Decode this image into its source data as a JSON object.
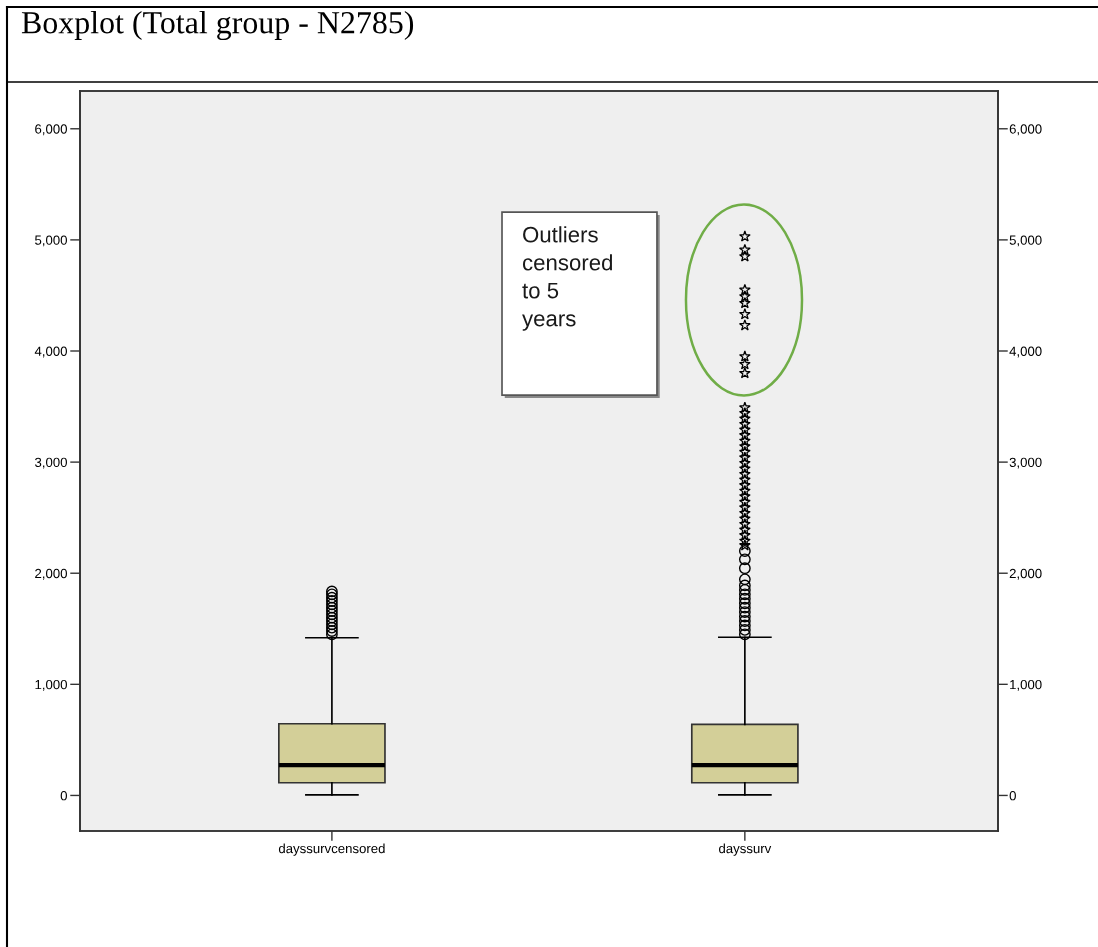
{
  "chart_data": {
    "type": "box",
    "title": "Boxplot (Total group - N2785)",
    "categories": [
      "dayssurvcensored",
      "dayssurv"
    ],
    "series": [
      {
        "type": "box",
        "color": "#d3cf98",
        "marker": "circle",
        "boxes": [
          {
            "low": 5,
            "q1": 114,
            "median": 273,
            "q3": 645,
            "high": 1419,
            "outliers": [
              1450,
              1480,
              1510,
              1540,
              1570,
              1600,
              1630,
              1660,
              1690,
              1720,
              1750,
              1780,
              1810,
              1836
            ]
          },
          {
            "low": 5,
            "q1": 114,
            "median": 273,
            "q3": 639,
            "high": 1424,
            "outliers": [
              1450,
              1490,
              1530,
              1570,
              1610,
              1650,
              1690,
              1730,
              1770,
              1810,
              1850,
              1890,
              1945,
              2045,
              2125,
              2200
            ]
          }
        ]
      },
      {
        "type": "scatter",
        "marker": "star",
        "color": "#000000",
        "x": [
          "dayssurv",
          "dayssurv",
          "dayssurv",
          "dayssurv",
          "dayssurv",
          "dayssurv",
          "dayssurv",
          "dayssurv",
          "dayssurv",
          "dayssurv",
          "dayssurv",
          "dayssurv",
          "dayssurv",
          "dayssurv",
          "dayssurv",
          "dayssurv",
          "dayssurv",
          "dayssurv",
          "dayssurv",
          "dayssurv",
          "dayssurv",
          "dayssurv",
          "dayssurv",
          "dayssurv",
          "dayssurv",
          "dayssurv",
          "dayssurv",
          "dayssurv",
          "dayssurv",
          "dayssurv",
          "dayssurv",
          "dayssurv",
          "dayssurv",
          "dayssurv",
          "dayssurv",
          "dayssurv",
          "dayssurv"
        ],
        "values": [
          2250,
          2290,
          2340,
          2390,
          2440,
          2490,
          2540,
          2590,
          2640,
          2690,
          2740,
          2790,
          2840,
          2890,
          2940,
          2990,
          3040,
          3090,
          3140,
          3190,
          3240,
          3290,
          3340,
          3390,
          3440,
          3490,
          3800,
          3880,
          3950,
          4230,
          4330,
          4430,
          4490,
          4550,
          4850,
          4910,
          5030
        ]
      }
    ],
    "ylim": [
      -320,
      6340
    ],
    "yticks": [
      0,
      {
        "value": 1000,
        "label": "1,000"
      },
      {
        "value": 2000,
        "label": "2,000"
      },
      {
        "value": 3000,
        "label": "3,000"
      },
      {
        "value": 4000,
        "label": "4,000"
      },
      {
        "value": 5000,
        "label": "5,000"
      },
      {
        "value": 6000,
        "label": "6,000"
      }
    ],
    "y2lim": [
      -320,
      6340
    ],
    "y2ticks": [
      0,
      {
        "value": 1000,
        "label": "1,000"
      },
      {
        "value": 2000,
        "label": "2,000"
      },
      {
        "value": 3000,
        "label": "3,000"
      },
      {
        "value": 4000,
        "label": "4,000"
      },
      {
        "value": 5000,
        "label": "5,000"
      },
      {
        "value": 6000,
        "label": "6,000"
      }
    ],
    "annotations": [
      "Outliers\ncensored\nto 5\nyears"
    ]
  }
}
